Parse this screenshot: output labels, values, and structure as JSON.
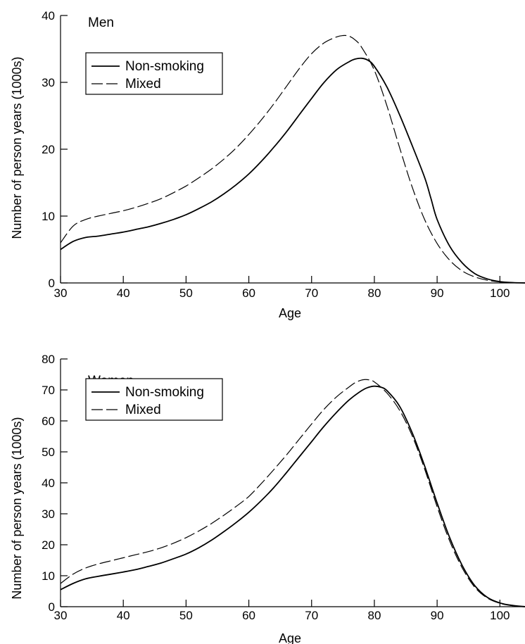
{
  "chart_data": [
    {
      "type": "line",
      "title": "Men",
      "xlabel": "Age",
      "ylabel": "Number of person years (1000s)",
      "xlim": [
        30,
        104
      ],
      "ylim": [
        0,
        40
      ],
      "xticks": [
        30,
        40,
        50,
        60,
        70,
        80,
        90,
        100
      ],
      "yticks": [
        0,
        10,
        20,
        30,
        40
      ],
      "grid": false,
      "legend_position": "top-left",
      "series": [
        {
          "name": "Non-smoking",
          "style": "solid",
          "color": "#000000",
          "x": [
            30,
            32,
            34,
            36,
            38,
            40,
            42,
            44,
            46,
            48,
            50,
            52,
            54,
            56,
            58,
            60,
            62,
            64,
            66,
            68,
            70,
            72,
            74,
            76,
            77,
            78,
            79,
            80,
            82,
            84,
            86,
            88,
            89,
            90,
            92,
            94,
            96,
            98,
            100,
            102,
            104
          ],
          "y": [
            5.0,
            6.2,
            6.8,
            7.0,
            7.3,
            7.6,
            8.0,
            8.4,
            8.9,
            9.5,
            10.2,
            11.1,
            12.1,
            13.3,
            14.7,
            16.3,
            18.2,
            20.3,
            22.6,
            25.1,
            27.6,
            30.0,
            31.9,
            33.1,
            33.5,
            33.6,
            33.3,
            32.4,
            29.3,
            25.2,
            20.6,
            15.8,
            12.7,
            9.5,
            5.5,
            3.0,
            1.4,
            0.6,
            0.2,
            0.05,
            0.0
          ]
        },
        {
          "name": "Mixed",
          "style": "dashed",
          "color": "#000000",
          "x": [
            30,
            32,
            34,
            36,
            38,
            40,
            42,
            44,
            46,
            48,
            50,
            52,
            54,
            56,
            58,
            60,
            62,
            64,
            66,
            68,
            70,
            72,
            74,
            75,
            76,
            77,
            78,
            80,
            82,
            84,
            86,
            88,
            90,
            92,
            94,
            96,
            98,
            100,
            102,
            104
          ],
          "y": [
            6.0,
            8.5,
            9.5,
            10.0,
            10.4,
            10.8,
            11.3,
            11.9,
            12.6,
            13.5,
            14.5,
            15.7,
            17.0,
            18.5,
            20.2,
            22.2,
            24.4,
            26.8,
            29.4,
            32.0,
            34.3,
            35.9,
            36.8,
            37.0,
            36.9,
            36.3,
            35.2,
            31.8,
            26.5,
            20.3,
            14.4,
            9.5,
            5.9,
            3.4,
            1.8,
            0.9,
            0.4,
            0.15,
            0.05,
            0.0
          ]
        }
      ]
    },
    {
      "type": "line",
      "title": "Women",
      "xlabel": "Age",
      "ylabel": "Number of person years (1000s)",
      "xlim": [
        30,
        104
      ],
      "ylim": [
        0,
        80
      ],
      "xticks": [
        30,
        40,
        50,
        60,
        70,
        80,
        90,
        100
      ],
      "yticks": [
        0,
        10,
        20,
        30,
        40,
        50,
        60,
        70,
        80
      ],
      "grid": false,
      "legend_position": "top-left",
      "series": [
        {
          "name": "Non-smoking",
          "style": "solid",
          "color": "#000000",
          "x": [
            30,
            32,
            34,
            36,
            38,
            40,
            42,
            44,
            46,
            48,
            50,
            52,
            54,
            56,
            58,
            60,
            62,
            64,
            66,
            68,
            70,
            72,
            74,
            76,
            78,
            79,
            80,
            81,
            82,
            84,
            86,
            88,
            90,
            92,
            94,
            96,
            98,
            100,
            102,
            104
          ],
          "y": [
            5.5,
            7.5,
            9.0,
            9.8,
            10.5,
            11.2,
            12.0,
            13.0,
            14.1,
            15.5,
            17.0,
            19.0,
            21.4,
            24.2,
            27.2,
            30.5,
            34.3,
            38.5,
            43.3,
            48.3,
            53.3,
            58.3,
            62.8,
            66.8,
            69.8,
            70.8,
            71.2,
            70.9,
            69.8,
            64.8,
            56.3,
            45.5,
            33.5,
            22.3,
            13.3,
            6.8,
            3.0,
            1.2,
            0.4,
            0.0
          ]
        },
        {
          "name": "Mixed",
          "style": "dashed",
          "color": "#000000",
          "x": [
            30,
            32,
            34,
            36,
            38,
            40,
            42,
            44,
            46,
            48,
            50,
            52,
            54,
            56,
            58,
            60,
            62,
            64,
            66,
            68,
            70,
            72,
            74,
            76,
            77,
            78,
            79,
            80,
            82,
            84,
            86,
            88,
            90,
            92,
            94,
            96,
            98,
            100,
            102,
            104
          ],
          "y": [
            7.5,
            10.5,
            12.5,
            13.8,
            14.8,
            15.8,
            16.8,
            17.8,
            19.0,
            20.5,
            22.3,
            24.4,
            26.8,
            29.5,
            32.4,
            35.6,
            39.8,
            44.3,
            49.0,
            54.0,
            59.0,
            63.8,
            67.8,
            71.0,
            72.4,
            73.2,
            73.3,
            72.6,
            69.0,
            63.5,
            55.3,
            44.5,
            32.3,
            21.2,
            12.5,
            6.3,
            2.8,
            1.1,
            0.3,
            0.0
          ]
        }
      ]
    }
  ]
}
